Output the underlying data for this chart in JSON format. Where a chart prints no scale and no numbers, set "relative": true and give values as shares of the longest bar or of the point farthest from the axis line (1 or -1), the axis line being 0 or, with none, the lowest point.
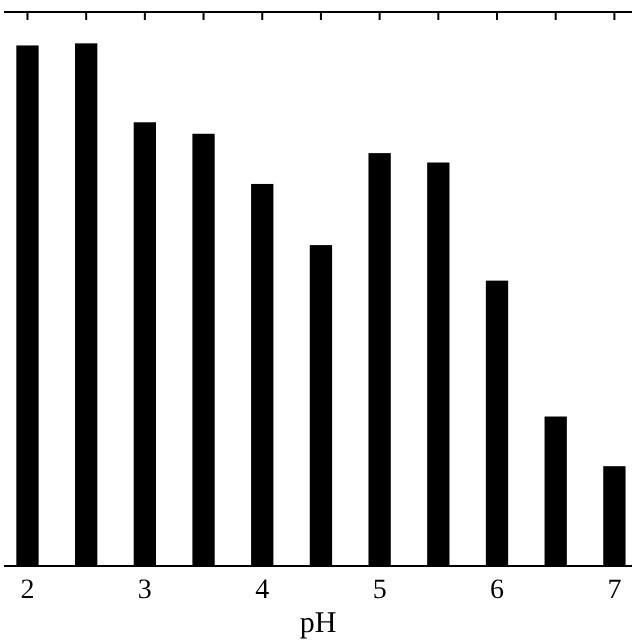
{
  "chart_data": {
    "type": "bar",
    "xlabel": "pH",
    "relative": true,
    "color": "#000000",
    "x": [
      2,
      2.5,
      3,
      3.5,
      4,
      4.5,
      5,
      5.5,
      6,
      6.5,
      7
    ],
    "values": [
      0.996,
      1,
      0.849,
      0.827,
      0.731,
      0.614,
      0.79,
      0.772,
      0.546,
      0.286,
      0.191
    ],
    "xlim": [
      1.8,
      7.15
    ],
    "xticks": [
      2,
      {
        "value": 2.5,
        "label": null
      },
      3,
      {
        "value": 3.5,
        "label": null
      },
      4,
      {
        "value": 4.5,
        "label": null
      },
      5,
      {
        "value": 5.5,
        "label": null
      },
      6,
      {
        "value": 6.5,
        "label": null
      },
      7
    ],
    "tick_labels": "x",
    "grid": false
  }
}
